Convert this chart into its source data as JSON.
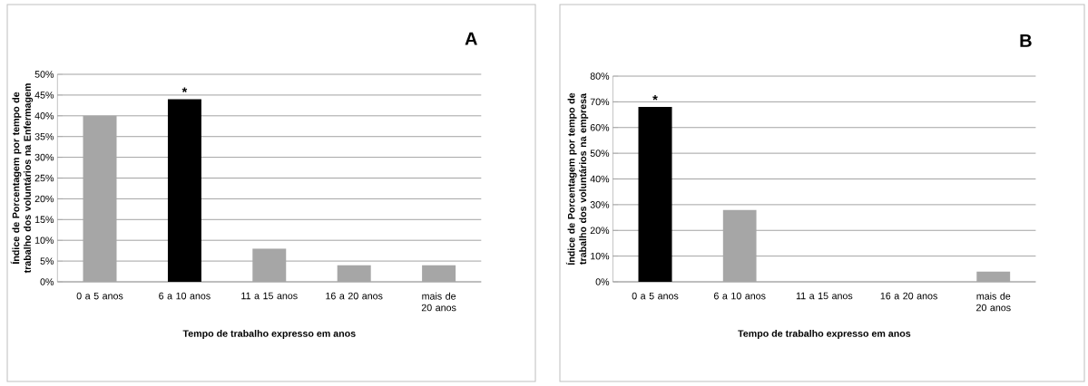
{
  "chart_data": [
    {
      "type": "bar",
      "title": "A",
      "xlabel": "Tempo de trabalho expresso em anos",
      "ylabel": "Índice de Porcentagem por tempo de trabalho dos voluntários na Enfermagem",
      "categories": [
        "0 a 5 anos",
        "6 a 10 anos",
        "11 a 15 anos",
        "16 a 20 anos",
        "mais de 20 anos"
      ],
      "values": [
        40,
        44,
        8,
        4,
        4
      ],
      "colors": [
        "#a6a6a6",
        "#000000",
        "#a6a6a6",
        "#a6a6a6",
        "#a6a6a6"
      ],
      "ylim": [
        0,
        50
      ],
      "yticks": [
        {
          "value": 0,
          "label": "0%"
        },
        {
          "value": 5,
          "label": "5%"
        },
        {
          "value": 10,
          "label": "10%"
        },
        {
          "value": 15,
          "label": "15%"
        },
        {
          "value": 20,
          "label": "20%"
        },
        {
          "value": 25,
          "label": "25%"
        },
        {
          "value": 30,
          "label": "30%"
        },
        {
          "value": 35,
          "label": "35%"
        },
        {
          "value": 40,
          "label": "40%"
        },
        {
          "value": 45,
          "label": "45%"
        },
        {
          "value": 50,
          "label": "50%"
        }
      ],
      "grid": "y",
      "annotations": [
        {
          "text": "*",
          "x": "6 a 10 anos",
          "y": 44
        }
      ]
    },
    {
      "type": "bar",
      "title": "B",
      "xlabel": "Tempo de trabalho expresso em anos",
      "ylabel": "Índice de Porcentagem por tempo de trabalho dos voluntários na empresa",
      "categories": [
        "0 a 5 anos",
        "6 a 10 anos",
        "11 a 15 anos",
        "16 a 20 anos",
        "mais de 20 anos"
      ],
      "values": [
        68,
        28,
        0,
        0,
        4
      ],
      "colors": [
        "#000000",
        "#a6a6a6",
        "#a6a6a6",
        "#a6a6a6",
        "#a6a6a6"
      ],
      "ylim": [
        0,
        80
      ],
      "yticks": [
        {
          "value": 0,
          "label": "0%"
        },
        {
          "value": 10,
          "label": "10%"
        },
        {
          "value": 20,
          "label": "20%"
        },
        {
          "value": 30,
          "label": "30%"
        },
        {
          "value": 40,
          "label": "40%"
        },
        {
          "value": 50,
          "label": "50%"
        },
        {
          "value": 60,
          "label": "60%"
        },
        {
          "value": 70,
          "label": "70%"
        },
        {
          "value": 80,
          "label": "80%"
        }
      ],
      "grid": "y",
      "annotations": [
        {
          "text": "*",
          "x": "0 a 5 anos",
          "y": 68
        }
      ]
    }
  ]
}
